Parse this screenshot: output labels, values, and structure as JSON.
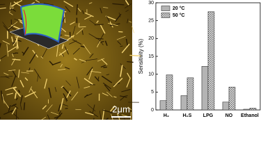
{
  "image": {
    "scale_bar": "2μm"
  },
  "chart_data": {
    "type": "bar",
    "y_label": "Sensitivity (%)",
    "categories": [
      "H₂",
      "H₂S",
      "LPG",
      "NO",
      "Ethanol"
    ],
    "series": [
      {
        "name": "20 °C",
        "color": "#b4b4b4",
        "pattern": "solid",
        "values": [
          2.6,
          4.0,
          12.2,
          2.2,
          0.2
        ]
      },
      {
        "name": "50 °C",
        "color": "#ffffff",
        "pattern": "crosshatch",
        "values": [
          9.8,
          9.0,
          27.5,
          6.4,
          0.5
        ]
      }
    ],
    "ylim": [
      0,
      30
    ],
    "yticks": [
      0,
      5,
      10,
      15,
      20,
      25,
      30
    ],
    "legend": "upper-left"
  }
}
